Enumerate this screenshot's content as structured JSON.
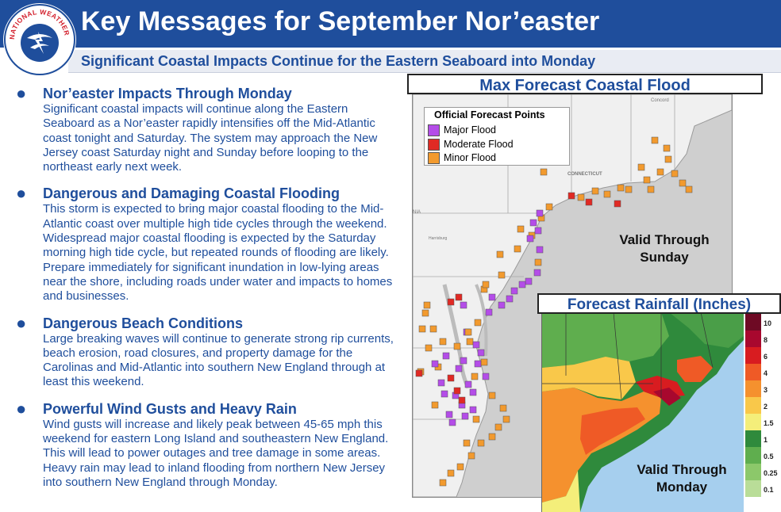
{
  "header": {
    "title": "Key Messages for September Nor’easter",
    "subtitle": "Significant Coastal Impacts Continue for the Eastern Seaboard into Monday",
    "logo_text": "NATIONAL WEATHER SERVICE"
  },
  "messages": [
    {
      "heading": "Nor’easter Impacts Through Monday",
      "body": "Significant coastal impacts will continue along the Eastern Seaboard as a Nor’easter rapidly intensifies off the Mid-Atlantic coast tonight and Saturday. The system may approach the New Jersey coast Saturday night and Sunday before looping to the northeast early next week."
    },
    {
      "heading": "Dangerous and Damaging Coastal Flooding",
      "body": "This storm is expected to bring major coastal flooding to the Mid-Atlantic coast over multiple high tide cycles through the weekend. Widespread major coastal flooding is expected by the Saturday morning high tide cycle, but repeated rounds of flooding are likely. Prepare immediately for significant inundation in low-lying areas near the shore, including roads under water and impacts to homes and businesses."
    },
    {
      "heading": "Dangerous Beach Conditions",
      "body": "Large breaking waves will continue to generate strong rip currents, beach erosion, road closures, and property damage for the Carolinas and Mid-Atlantic into southern New England through at least this weekend."
    },
    {
      "heading": "Powerful Wind Gusts and Heavy Rain",
      "body": "Wind gusts will increase and likely peak between 45-65 mph this weekend for eastern Long Island and southeastern New England. This will lead to power outages and tree damage in some areas. Heavy rain may lead to inland flooding from northern New Jersey into southern New England through Monday."
    }
  ],
  "flood_map": {
    "title": "Max Forecast Coastal Flood",
    "legend_title": "Official Forecast Points",
    "legend": [
      {
        "label": "Major Flood",
        "color": "#b44de8"
      },
      {
        "label": "Moderate Flood",
        "color": "#e02a24"
      },
      {
        "label": "Minor Flood",
        "color": "#f29a2e"
      }
    ],
    "valid_line1": "Valid Through",
    "valid_line2": "Sunday",
    "place_labels": {
      "concord": "Concord",
      "connecticut": "CONNECTICUT",
      "harrisburg": "Harrisburg",
      "nia": "NIA"
    }
  },
  "rain_map": {
    "title": "Forecast Rainfall (Inches)",
    "valid_line1": "Valid Through",
    "valid_line2": "Monday",
    "scale": [
      {
        "label": "10",
        "color": "#6e0a24"
      },
      {
        "label": "8",
        "color": "#a8082e"
      },
      {
        "label": "6",
        "color": "#d81c20"
      },
      {
        "label": "4",
        "color": "#ef5a26"
      },
      {
        "label": "3",
        "color": "#f5912e"
      },
      {
        "label": "2",
        "color": "#f9c84a"
      },
      {
        "label": "1.5",
        "color": "#f4ee7a"
      },
      {
        "label": "1",
        "color": "#2f8a3c"
      },
      {
        "label": "0.5",
        "color": "#5fae4e"
      },
      {
        "label": "0.25",
        "color": "#8cc86a"
      },
      {
        "label": "0.1",
        "color": "#b9dd98"
      }
    ]
  },
  "colors": {
    "brand": "#1f4e9c",
    "subbar": "#e9ecf3",
    "ocean": "#cfcfcf",
    "land": "#f2f2f2"
  }
}
